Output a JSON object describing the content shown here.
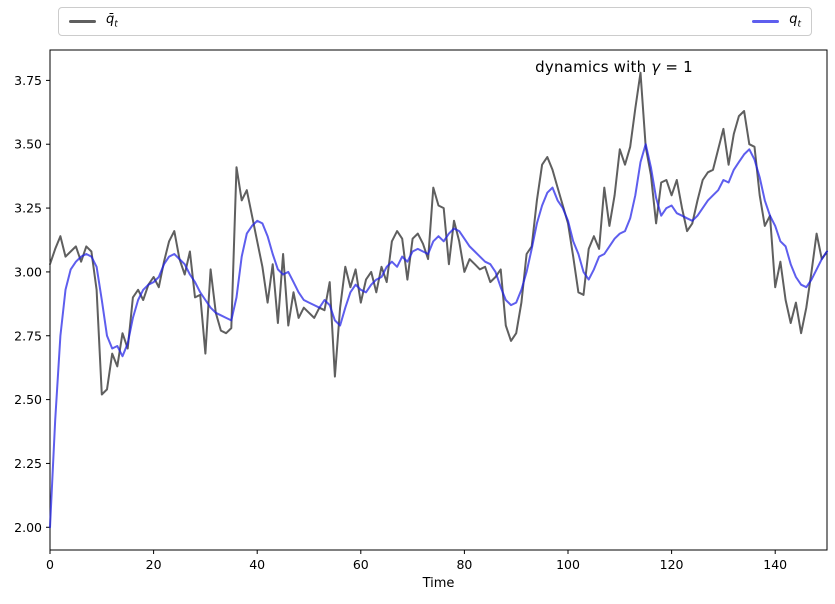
{
  "figure": {
    "background": "#ffffff"
  },
  "legend": {
    "entries": [
      {
        "base": "q̄",
        "sub": "t",
        "color": "#5f5f5f"
      },
      {
        "base": "q",
        "sub": "t",
        "color": "#5e5eee"
      }
    ]
  },
  "chart_data": {
    "type": "line",
    "title": "dynamics with γ = 1",
    "annotation": {
      "prefix": "dynamics with ",
      "gamma": "γ",
      "suffix": " = 1"
    },
    "xlabel": "Time",
    "ylabel": "",
    "xlim": [
      0,
      150
    ],
    "ylim": [
      1.911,
      3.869
    ],
    "xticks": [
      0,
      20,
      40,
      60,
      80,
      100,
      120,
      140
    ],
    "yticks": [
      2.0,
      2.25,
      2.5,
      2.75,
      3.0,
      3.25,
      3.5,
      3.75
    ],
    "grid": false,
    "legend_position": "top-expanded",
    "x_start": 0,
    "x_step": 1,
    "series": [
      {
        "name": "q̄_t",
        "color": "#3c3c3c",
        "alpha": 0.82,
        "values": [
          3.03,
          3.09,
          3.14,
          3.06,
          3.08,
          3.1,
          3.04,
          3.1,
          3.08,
          2.93,
          2.52,
          2.54,
          2.68,
          2.63,
          2.76,
          2.7,
          2.9,
          2.93,
          2.89,
          2.95,
          2.98,
          2.94,
          3.04,
          3.12,
          3.16,
          3.05,
          2.99,
          3.08,
          2.9,
          2.91,
          2.68,
          3.01,
          2.84,
          2.77,
          2.76,
          2.78,
          3.41,
          3.28,
          3.32,
          3.22,
          3.12,
          3.02,
          2.88,
          3.03,
          2.8,
          3.07,
          2.79,
          2.92,
          2.82,
          2.86,
          2.84,
          2.82,
          2.86,
          2.85,
          2.96,
          2.59,
          2.86,
          3.02,
          2.94,
          3.01,
          2.88,
          2.97,
          3.0,
          2.92,
          3.02,
          2.96,
          3.12,
          3.16,
          3.13,
          2.97,
          3.13,
          3.15,
          3.11,
          3.05,
          3.33,
          3.26,
          3.25,
          3.03,
          3.2,
          3.12,
          3.0,
          3.05,
          3.03,
          3.01,
          3.02,
          2.96,
          2.98,
          3.01,
          2.79,
          2.73,
          2.76,
          2.88,
          3.07,
          3.1,
          3.28,
          3.42,
          3.45,
          3.4,
          3.33,
          3.26,
          3.19,
          3.06,
          2.92,
          2.91,
          3.09,
          3.14,
          3.09,
          3.33,
          3.18,
          3.3,
          3.48,
          3.42,
          3.49,
          3.64,
          3.78,
          3.49,
          3.38,
          3.19,
          3.35,
          3.36,
          3.3,
          3.36,
          3.25,
          3.16,
          3.19,
          3.28,
          3.36,
          3.39,
          3.4,
          3.48,
          3.56,
          3.42,
          3.54,
          3.61,
          3.63,
          3.5,
          3.49,
          3.3,
          3.18,
          3.22,
          2.94,
          3.04,
          2.89,
          2.8,
          2.88,
          2.76,
          2.86,
          3.0,
          3.15,
          3.05,
          3.08
        ]
      },
      {
        "name": "q_t",
        "color": "#2020e8",
        "alpha": 0.72,
        "values": [
          2.0,
          2.42,
          2.75,
          2.93,
          3.01,
          3.04,
          3.06,
          3.07,
          3.06,
          3.02,
          2.89,
          2.75,
          2.7,
          2.71,
          2.67,
          2.72,
          2.82,
          2.89,
          2.93,
          2.95,
          2.96,
          2.98,
          3.03,
          3.06,
          3.07,
          3.05,
          3.03,
          2.99,
          2.96,
          2.92,
          2.89,
          2.86,
          2.84,
          2.83,
          2.82,
          2.81,
          2.9,
          3.06,
          3.15,
          3.18,
          3.2,
          3.19,
          3.14,
          3.07,
          3.01,
          2.99,
          3.0,
          2.96,
          2.92,
          2.89,
          2.88,
          2.87,
          2.86,
          2.89,
          2.87,
          2.81,
          2.79,
          2.86,
          2.92,
          2.95,
          2.93,
          2.92,
          2.95,
          2.97,
          2.98,
          3.02,
          3.04,
          3.02,
          3.06,
          3.04,
          3.08,
          3.09,
          3.08,
          3.07,
          3.12,
          3.14,
          3.12,
          3.15,
          3.17,
          3.16,
          3.13,
          3.1,
          3.08,
          3.06,
          3.04,
          3.03,
          3.0,
          2.94,
          2.89,
          2.87,
          2.88,
          2.93,
          3.0,
          3.09,
          3.19,
          3.26,
          3.31,
          3.33,
          3.28,
          3.25,
          3.2,
          3.12,
          3.07,
          3.0,
          2.97,
          3.01,
          3.06,
          3.07,
          3.1,
          3.13,
          3.15,
          3.16,
          3.21,
          3.3,
          3.43,
          3.5,
          3.41,
          3.29,
          3.22,
          3.25,
          3.26,
          3.23,
          3.22,
          3.21,
          3.2,
          3.22,
          3.25,
          3.28,
          3.3,
          3.32,
          3.36,
          3.35,
          3.4,
          3.43,
          3.46,
          3.48,
          3.44,
          3.37,
          3.28,
          3.22,
          3.18,
          3.12,
          3.1,
          3.03,
          2.98,
          2.95,
          2.94,
          2.97,
          3.01,
          3.05,
          3.08
        ]
      }
    ],
    "axes": {
      "spine_color": "#000000",
      "tick_color": "#000000",
      "label_color": "#000000"
    }
  }
}
